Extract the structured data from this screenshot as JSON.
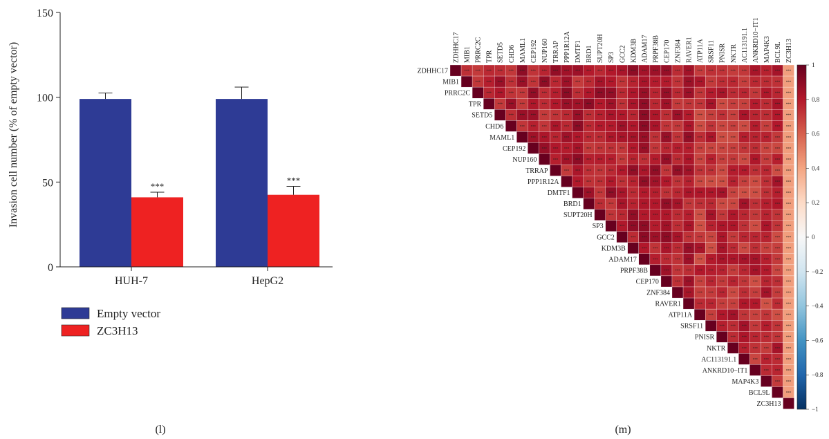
{
  "panel_labels": {
    "left": "(l)",
    "right": "(m)"
  },
  "chart_data": [
    {
      "type": "bar",
      "ylabel": "Invasion cell number (% of empty vector)",
      "xlabel": "",
      "ylim": [
        0,
        150
      ],
      "yticks": [
        "0",
        "50",
        "100",
        "150"
      ],
      "categories": [
        "HUH-7",
        "HepG2"
      ],
      "series": [
        {
          "name": "Empty vector",
          "color": "#2E3B95",
          "values": [
            99,
            99
          ],
          "errors": [
            3.5,
            7
          ]
        },
        {
          "name": "ZC3H13",
          "color": "#EE2222",
          "values": [
            41,
            42.5
          ],
          "errors": [
            3,
            5
          ]
        }
      ],
      "annotations": [
        "***",
        "***"
      ],
      "legend_position": "bottom-left"
    },
    {
      "type": "heatmap",
      "labels": [
        "ZDHHC17",
        "MIB1",
        "PRRC2C",
        "TPR",
        "SETD5",
        "CHD6",
        "MAML1",
        "CEP192",
        "NUP160",
        "TRRAP",
        "PPP1R12A",
        "DMTF1",
        "BRD1",
        "SUPT20H",
        "SP3",
        "GCC2",
        "KDM3B",
        "ADAM17",
        "PRPF38B",
        "CEP170",
        "ZNF384",
        "RAVER1",
        "ATP11A",
        "SRSF11",
        "PNISR",
        "NKTR",
        "AC113191.1",
        "ANKRD10−IT1",
        "MAP4K3",
        "BCL9L",
        "ZC3H13"
      ],
      "layout": "upper-triangle",
      "cell_annotation": "***",
      "value_range": [
        -1,
        1
      ],
      "colorbar_ticks": [
        "1",
        "0.8",
        "0.6",
        "0.4",
        "0.2",
        "0",
        "−0.2",
        "−0.4",
        "−0.6",
        "−0.8",
        "−1"
      ],
      "colorbar_colors": {
        "max": "#67001F",
        "mid": "#F7F7F7",
        "min": "#053061"
      },
      "typical_correlation": 0.8,
      "last_column_correlation": 0.42
    }
  ]
}
